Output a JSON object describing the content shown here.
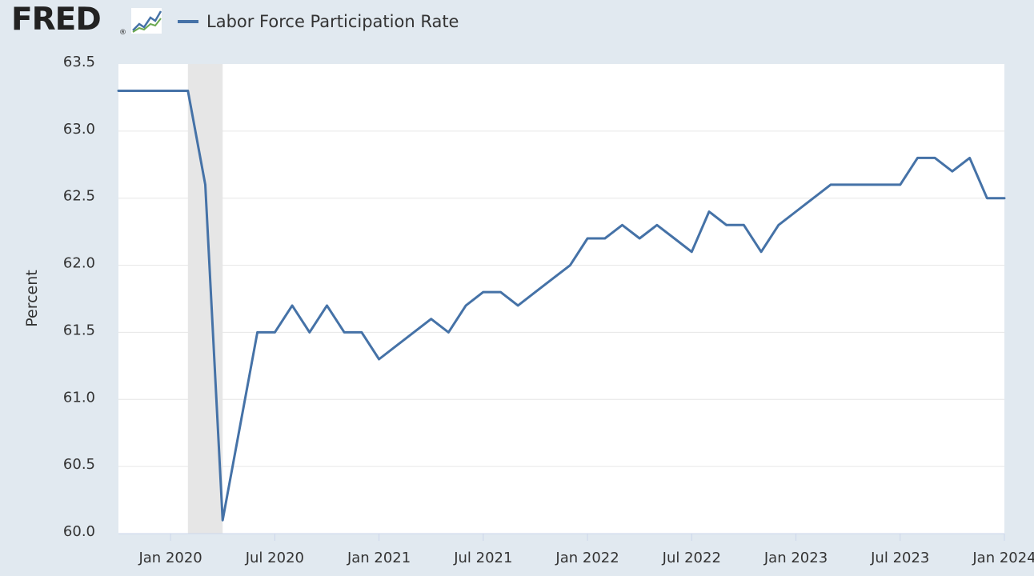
{
  "header": {
    "logo_text": "FRED",
    "logo_mark": "®",
    "logo_icon": "trend-chart-icon"
  },
  "legend": {
    "label": "Labor Force Participation Rate",
    "color": "#4572a7"
  },
  "colors": {
    "background": "#e1e9f0",
    "plot_background": "#ffffff",
    "line": "#4572a7",
    "recession_shade": "#e6e6e6",
    "gridline": "#e6e6e6"
  },
  "chart_data": {
    "type": "line",
    "ylabel": "Percent",
    "ylim": [
      60.0,
      63.5
    ],
    "y_ticks": [
      "60.0",
      "60.5",
      "61.0",
      "61.5",
      "62.0",
      "62.5",
      "63.0",
      "63.5"
    ],
    "xlim": [
      "2019-10",
      "2024-01"
    ],
    "x_ticks": [
      {
        "date": "2020-01",
        "label": "Jan 2020"
      },
      {
        "date": "2020-07",
        "label": "Jul 2020"
      },
      {
        "date": "2021-01",
        "label": "Jan 2021"
      },
      {
        "date": "2021-07",
        "label": "Jul 2021"
      },
      {
        "date": "2022-01",
        "label": "Jan 2022"
      },
      {
        "date": "2022-07",
        "label": "Jul 2022"
      },
      {
        "date": "2023-01",
        "label": "Jan 2023"
      },
      {
        "date": "2023-07",
        "label": "Jul 2023"
      },
      {
        "date": "2024-01",
        "label": "Jan 2024"
      }
    ],
    "recession": [
      "2020-02",
      "2020-04"
    ],
    "grid": true,
    "series": [
      {
        "name": "Labor Force Participation Rate",
        "x": [
          "2019-10",
          "2019-11",
          "2019-12",
          "2020-01",
          "2020-02",
          "2020-03",
          "2020-04",
          "2020-05",
          "2020-06",
          "2020-07",
          "2020-08",
          "2020-09",
          "2020-10",
          "2020-11",
          "2020-12",
          "2021-01",
          "2021-02",
          "2021-03",
          "2021-04",
          "2021-05",
          "2021-06",
          "2021-07",
          "2021-08",
          "2021-09",
          "2021-10",
          "2021-11",
          "2021-12",
          "2022-01",
          "2022-02",
          "2022-03",
          "2022-04",
          "2022-05",
          "2022-06",
          "2022-07",
          "2022-08",
          "2022-09",
          "2022-10",
          "2022-11",
          "2022-12",
          "2023-01",
          "2023-02",
          "2023-03",
          "2023-04",
          "2023-05",
          "2023-06",
          "2023-07",
          "2023-08",
          "2023-09",
          "2023-10",
          "2023-11",
          "2023-12",
          "2024-01"
        ],
        "values": [
          63.3,
          63.3,
          63.3,
          63.3,
          63.3,
          62.6,
          60.1,
          60.8,
          61.5,
          61.5,
          61.7,
          61.5,
          61.7,
          61.5,
          61.5,
          61.3,
          61.4,
          61.5,
          61.6,
          61.5,
          61.7,
          61.8,
          61.8,
          61.7,
          61.8,
          61.9,
          62.0,
          62.2,
          62.2,
          62.3,
          62.2,
          62.3,
          62.2,
          62.1,
          62.4,
          62.3,
          62.3,
          62.1,
          62.3,
          62.4,
          62.5,
          62.6,
          62.6,
          62.6,
          62.6,
          62.6,
          62.8,
          62.8,
          62.7,
          62.8,
          62.5,
          62.5
        ]
      }
    ]
  }
}
